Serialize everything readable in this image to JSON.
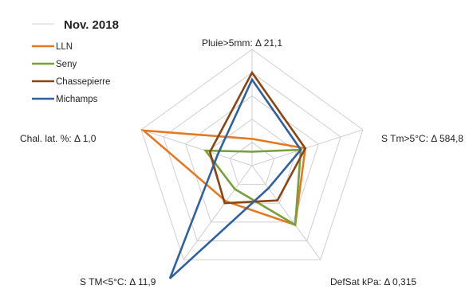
{
  "chart_data": {
    "type": "radar",
    "title": "",
    "axes": [
      "Pluie>5mm: Δ 21,1",
      "S Tm>5°C: Δ 584,8",
      "DefSat kPa: Δ 0,315",
      "S TM<5°C: Δ 11,9",
      "Chal. lat. %: Δ 1,0"
    ],
    "rlim": [
      0,
      1
    ],
    "grid_levels": 5,
    "grid": true,
    "legend_position": "top-left",
    "legend_title": "Nov.  2018",
    "series": [
      {
        "name": "LLN",
        "color": "#e57921",
        "values": [
          0.23,
          0.48,
          0.63,
          0.38,
          0.98
        ]
      },
      {
        "name": "Seny",
        "color": "#77a03b",
        "values": [
          0.12,
          0.44,
          0.63,
          0.25,
          0.42
        ]
      },
      {
        "name": "Chassepierre",
        "color": "#8b4513",
        "values": [
          0.8,
          0.48,
          0.37,
          0.4,
          0.38
        ]
      },
      {
        "name": "Michamps",
        "color": "#30609f",
        "values": [
          0.74,
          0.44,
          0.24,
          1.2,
          0.31
        ]
      }
    ]
  }
}
